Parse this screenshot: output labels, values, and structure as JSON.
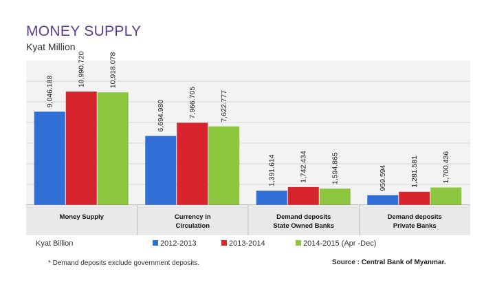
{
  "chart_data": {
    "type": "bar",
    "title": "MONEY SUPPLY",
    "subtitle": "Kyat Million",
    "ylabel": "Kyat Billion",
    "categories": [
      [
        "Money Supply"
      ],
      [
        "Currency in",
        "Circulation"
      ],
      [
        "Demand deposits",
        "State Owned Banks"
      ],
      [
        "Demand deposits",
        "Private Banks"
      ]
    ],
    "series": [
      {
        "name": "2012-2013",
        "color": "#2f6fd6",
        "values": [
          9046.188,
          6694.98,
          1391.614,
          959.594
        ],
        "labels": [
          "9,046.188",
          "6,694.980",
          "1,391.614",
          "959.594"
        ]
      },
      {
        "name": "2013-2014",
        "color": "#d8242c",
        "values": [
          10990.72,
          7966.705,
          1742.434,
          1281.581
        ],
        "labels": [
          "10,990.720",
          "7,966.705",
          "1,742.434",
          "1,281.581"
        ]
      },
      {
        "name": "2014-2015 (Apr -Dec)",
        "color": "#8cc63f",
        "values": [
          10918.078,
          7622.777,
          1594.865,
          1700.436
        ],
        "labels": [
          "10,918.078",
          "7,622.777",
          "1,594.865",
          "1,700.436"
        ]
      }
    ],
    "ylim": [
      0,
      14000
    ],
    "grid": true,
    "legend": "bottom"
  },
  "footnote": "* Demand deposits exclude government deposits.",
  "source": "Source : Central Bank of Myanmar."
}
